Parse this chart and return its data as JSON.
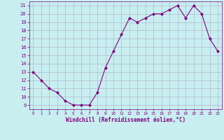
{
  "x": [
    0,
    1,
    2,
    3,
    4,
    5,
    6,
    7,
    8,
    9,
    10,
    11,
    12,
    13,
    14,
    15,
    16,
    17,
    18,
    19,
    20,
    21,
    22,
    23
  ],
  "y": [
    13,
    12,
    11,
    10.5,
    9.5,
    9,
    9,
    9,
    10.5,
    13.5,
    15.5,
    17.5,
    19.5,
    19,
    19.5,
    20,
    20,
    20.5,
    21,
    19.5,
    21,
    20,
    17,
    15.5
  ],
  "line_color": "#800080",
  "marker": "D",
  "marker_size": 2,
  "bg_color": "#c8eef0",
  "grid_color": "#b0b8d0",
  "xlabel": "Windchill (Refroidissement éolien,°C)",
  "xlabel_color": "#800080",
  "tick_color": "#800080",
  "ylim": [
    9,
    21
  ],
  "xlim": [
    0,
    23
  ],
  "yticks": [
    9,
    10,
    11,
    12,
    13,
    14,
    15,
    16,
    17,
    18,
    19,
    20,
    21
  ],
  "xticks": [
    0,
    1,
    2,
    3,
    4,
    5,
    6,
    7,
    8,
    9,
    10,
    11,
    12,
    13,
    14,
    15,
    16,
    17,
    18,
    19,
    20,
    21,
    22,
    23
  ]
}
